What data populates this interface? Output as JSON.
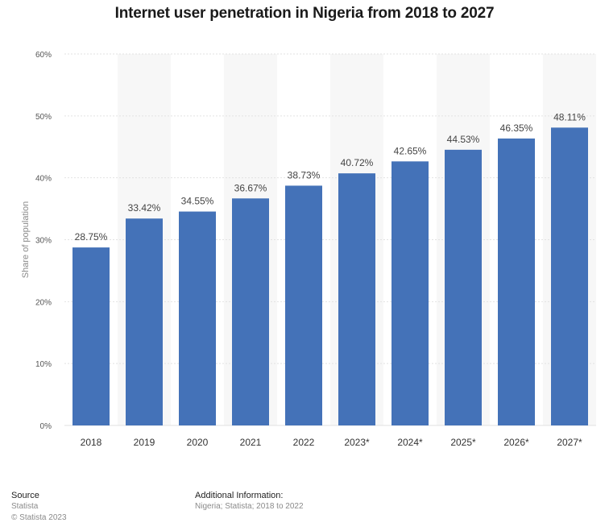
{
  "chart_data": {
    "type": "bar",
    "title": "Internet user penetration in Nigeria from 2018 to 2027",
    "xlabel": "",
    "ylabel": "Share of population",
    "categories": [
      "2018",
      "2019",
      "2020",
      "2021",
      "2022",
      "2023*",
      "2024*",
      "2025*",
      "2026*",
      "2027*"
    ],
    "values": [
      28.75,
      33.42,
      34.55,
      36.67,
      38.73,
      40.72,
      42.65,
      44.53,
      46.35,
      48.11
    ],
    "value_labels": [
      "28.75%",
      "33.42%",
      "34.55%",
      "36.67%",
      "38.73%",
      "40.72%",
      "42.65%",
      "44.53%",
      "46.35%",
      "48.11%"
    ],
    "ylim": [
      0,
      60
    ],
    "yticks": [
      0,
      10,
      20,
      30,
      40,
      50,
      60
    ],
    "ytick_labels": [
      "0%",
      "10%",
      "20%",
      "30%",
      "40%",
      "50%",
      "60%"
    ],
    "grid": true,
    "legend": "none",
    "colors": {
      "bar": "#4472b8",
      "band": "#f7f7f7",
      "grid": "#e2e2e2",
      "tick_text": "#555555",
      "label_text": "#444444"
    }
  },
  "footer": {
    "source_heading": "Source",
    "source_lines": [
      "Statista",
      "© Statista 2023"
    ],
    "info_heading": "Additional Information:",
    "info_lines": [
      "Nigeria; Statista; 2018 to 2022"
    ]
  }
}
